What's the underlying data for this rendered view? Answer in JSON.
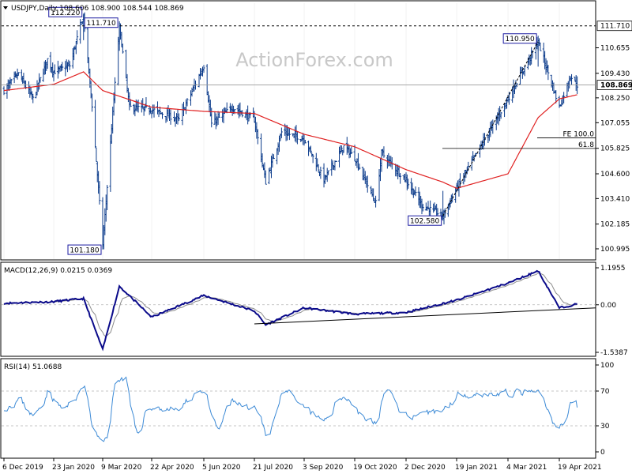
{
  "chart_data": [
    {
      "type": "candlestick",
      "panel": "price",
      "instrument": "USDJPY",
      "timeframe": "Daily",
      "header_text": "USDJPY,Daily  108.606 108.900 108.544 108.869",
      "watermark": "ActionForex.com",
      "ylim": [
        100.5,
        112.8
      ],
      "y_ticks": [
        "111.710",
        "110.655",
        "109.430",
        "108.869",
        "108.250",
        "107.055",
        "105.825",
        "104.600",
        "103.410",
        "102.185",
        "100.995"
      ],
      "x_ticks": [
        "6 Dec 2019",
        "23 Jan 2020",
        "9 Mar 2020",
        "22 Apr 2020",
        "5 Jun 2020",
        "21 Jul 2020",
        "3 Sep 2020",
        "19 Oct 2020",
        "2 Dec 2020",
        "19 Jan 2021",
        "4 Mar 2021",
        "19 Apr 2021"
      ],
      "close_path": [
        [
          "6 Dec 2019",
          108.6
        ],
        [
          "20 Dec 2019",
          109.4
        ],
        [
          "3 Jan 2020",
          108.2
        ],
        [
          "17 Jan 2020",
          110.1
        ],
        [
          "23 Jan 2020",
          109.5
        ],
        [
          "7 Feb 2020",
          109.8
        ],
        [
          "20 Feb 2020",
          112.2
        ],
        [
          "28 Feb 2020",
          107.9
        ],
        [
          "9 Mar 2020",
          101.18
        ],
        [
          "24 Mar 2020",
          111.7
        ],
        [
          "2 Apr 2020",
          107.8
        ],
        [
          "22 Apr 2020",
          107.7
        ],
        [
          "15 May 2020",
          107.2
        ],
        [
          "5 Jun 2020",
          109.8
        ],
        [
          "12 Jun 2020",
          107.0
        ],
        [
          "1 Jul 2020",
          107.8
        ],
        [
          "21 Jul 2020",
          107.2
        ],
        [
          "31 Jul 2020",
          104.2
        ],
        [
          "14 Aug 2020",
          106.6
        ],
        [
          "3 Sep 2020",
          106.3
        ],
        [
          "21 Sep 2020",
          104.3
        ],
        [
          "9 Oct 2020",
          105.9
        ],
        [
          "19 Oct 2020",
          105.4
        ],
        [
          "6 Nov 2020",
          103.2
        ],
        [
          "11 Nov 2020",
          105.6
        ],
        [
          "2 Dec 2020",
          104.3
        ],
        [
          "17 Dec 2020",
          103.1
        ],
        [
          "6 Jan 2021",
          102.58
        ],
        [
          "19 Jan 2021",
          103.9
        ],
        [
          "4 Mar 2021",
          108.2
        ],
        [
          "31 Mar 2021",
          110.95
        ],
        [
          "19 Apr 2021",
          107.8
        ],
        [
          "29 Apr 2021",
          109.3
        ],
        [
          "5 May 2021",
          108.869
        ]
      ],
      "last_price": 108.869,
      "moving_average_path": [
        [
          "6 Dec 2019",
          108.6
        ],
        [
          "23 Jan 2020",
          108.9
        ],
        [
          "20 Feb 2020",
          109.5
        ],
        [
          "9 Mar 2020",
          108.6
        ],
        [
          "22 Apr 2020",
          107.8
        ],
        [
          "5 Jun 2020",
          107.6
        ],
        [
          "21 Jul 2020",
          107.5
        ],
        [
          "3 Sep 2020",
          106.5
        ],
        [
          "19 Oct 2020",
          105.9
        ],
        [
          "2 Dec 2020",
          104.8
        ],
        [
          "6 Jan 2021",
          104.2
        ],
        [
          "19 Jan 2021",
          103.9
        ],
        [
          "4 Mar 2021",
          104.6
        ],
        [
          "31 Mar 2021",
          107.3
        ],
        [
          "19 Apr 2021",
          108.2
        ],
        [
          "5 May 2021",
          108.4
        ]
      ],
      "annotations": [
        {
          "text": "112.220",
          "date": "20 Feb 2020",
          "value": 112.22
        },
        {
          "text": "111.710",
          "date": "24 Mar 2020",
          "value": 111.71
        },
        {
          "text": "101.180",
          "date": "9 Mar 2020",
          "value": 101.18
        },
        {
          "text": "102.580",
          "date": "6 Jan 2021",
          "value": 102.58
        },
        {
          "text": "110.950",
          "date": "31 Mar 2021",
          "value": 110.95
        }
      ],
      "horizontal_lines": [
        {
          "value": 111.71,
          "label": "111.710",
          "style": "dashed"
        }
      ],
      "fibonacci": [
        {
          "label": "FE 100.0",
          "value": 106.33
        },
        {
          "label": "61.8",
          "value": 105.82
        }
      ],
      "colors": {
        "candles": "#0a3a8a",
        "moving_average": "#e02020",
        "grid": "#cfcfcf",
        "label_box": "#1a1aa0"
      }
    },
    {
      "type": "line",
      "panel": "macd",
      "title": "MACD(12,26,9) 0.0215 0.0369",
      "ylim": [
        -1.5387,
        1.1955
      ],
      "y_ticks": [
        "1.1955",
        "0.00",
        "-1.5387"
      ],
      "series": [
        {
          "name": "MACD",
          "values": [
            [
              "6 Dec 2019",
              0.05
            ],
            [
              "23 Jan 2020",
              0.1
            ],
            [
              "20 Feb 2020",
              0.2
            ],
            [
              "9 Mar 2020",
              -1.45
            ],
            [
              "24 Mar 2020",
              0.6
            ],
            [
              "22 Apr 2020",
              -0.4
            ],
            [
              "5 Jun 2020",
              0.3
            ],
            [
              "21 Jul 2020",
              -0.2
            ],
            [
              "31 Jul 2020",
              -0.65
            ],
            [
              "3 Sep 2020",
              -0.1
            ],
            [
              "19 Oct 2020",
              -0.3
            ],
            [
              "2 Dec 2020",
              -0.25
            ],
            [
              "19 Jan 2021",
              0.15
            ],
            [
              "4 Mar 2021",
              0.7
            ],
            [
              "31 Mar 2021",
              1.1
            ],
            [
              "19 Apr 2021",
              -0.1
            ],
            [
              "5 May 2021",
              0.0215
            ]
          ]
        },
        {
          "name": "Signal",
          "value": 0.0369
        }
      ],
      "trendline": [
        [
          "21 Jul 2020",
          -0.62
        ],
        [
          "5 May 2021",
          -0.1
        ]
      ],
      "colors": {
        "macd": "#0a0a8a",
        "signal": "#8c8c8c"
      }
    },
    {
      "type": "line",
      "panel": "rsi",
      "title": "RSI(14) 51.0688",
      "ylim": [
        0,
        100
      ],
      "y_ticks": [
        "100",
        "70",
        "30",
        "0"
      ],
      "levels": [
        70,
        30
      ],
      "last_value": 51.0688,
      "colors": {
        "rsi": "#3c8ad6"
      }
    }
  ]
}
